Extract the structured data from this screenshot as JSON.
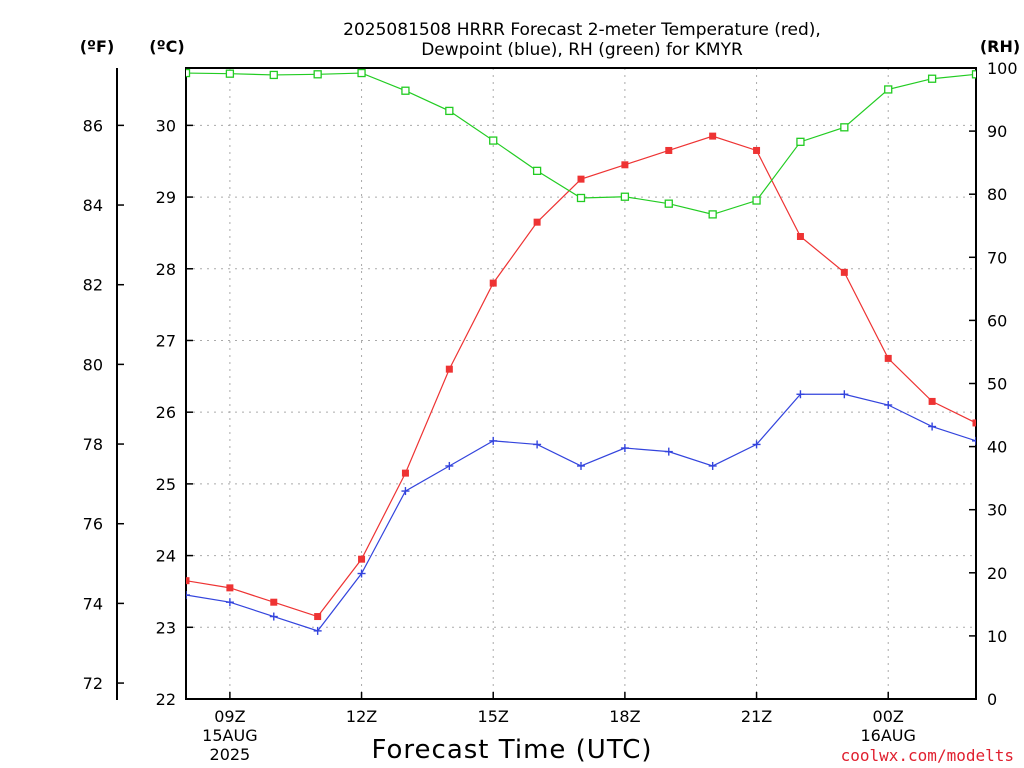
{
  "title_line1": "2025081508 HRRR Forecast 2-meter Temperature (red),",
  "title_line2": "Dewpoint (blue), RH (green) for KMYR",
  "unit_f": "(ºF)",
  "unit_c": "(ºC)",
  "unit_rh": "(RH)",
  "credit": "coolwx.com/modelts",
  "chart_data": {
    "type": "line",
    "title": "2025081508 HRRR Forecast 2-meter Temperature (red), Dewpoint (blue), RH (green) for KMYR",
    "xlabel": "Forecast Time (UTC)",
    "x_hours": [
      8,
      9,
      10,
      11,
      12,
      13,
      14,
      15,
      16,
      17,
      18,
      19,
      20,
      21,
      22,
      23,
      24,
      25,
      26
    ],
    "xlim": [
      8,
      26
    ],
    "x_ticks": [
      {
        "hour": 9,
        "lines": [
          "09Z",
          "15AUG",
          "2025"
        ]
      },
      {
        "hour": 12,
        "lines": [
          "12Z"
        ]
      },
      {
        "hour": 15,
        "lines": [
          "15Z"
        ]
      },
      {
        "hour": 18,
        "lines": [
          "18Z"
        ]
      },
      {
        "hour": 21,
        "lines": [
          "21Z"
        ]
      },
      {
        "hour": 24,
        "lines": [
          "00Z",
          "16AUG"
        ]
      }
    ],
    "y_celsius": {
      "label": "(ºC)",
      "ylim": [
        22,
        31
      ],
      "ticks": [
        22,
        23,
        24,
        25,
        26,
        27,
        28,
        29,
        30
      ]
    },
    "y_fahrenheit": {
      "label": "(ºF)",
      "ticks": [
        72,
        74,
        76,
        78,
        80,
        82,
        84,
        86
      ]
    },
    "y_rh": {
      "label": "(RH)",
      "ylim": [
        0,
        100
      ],
      "ticks": [
        0,
        10,
        20,
        30,
        40,
        50,
        60,
        70,
        80,
        90,
        100
      ]
    },
    "series": [
      {
        "name": "Temperature",
        "axis": "celsius",
        "color": "#ee3333",
        "marker": "filled-square",
        "values": [
          23.65,
          23.55,
          23.35,
          23.15,
          23.95,
          25.15,
          26.6,
          27.8,
          28.65,
          29.25,
          29.45,
          29.65,
          29.85,
          29.65,
          28.45,
          27.95,
          26.75,
          26.15,
          25.85
        ]
      },
      {
        "name": "Dewpoint",
        "axis": "celsius",
        "color": "#3344dd",
        "marker": "plus",
        "values": [
          23.45,
          23.35,
          23.15,
          22.95,
          23.75,
          24.9,
          25.25,
          25.6,
          25.55,
          25.25,
          25.5,
          25.45,
          25.25,
          25.55,
          26.25,
          26.25,
          26.1,
          25.8,
          25.6
        ]
      },
      {
        "name": "RH",
        "axis": "rh",
        "color": "#22cc22",
        "marker": "open-square",
        "values": [
          99.2,
          99.1,
          98.9,
          99.0,
          99.2,
          96.4,
          93.2,
          88.5,
          83.7,
          79.4,
          79.6,
          78.5,
          76.8,
          79.0,
          88.3,
          90.6,
          96.6,
          98.3,
          99.0
        ]
      }
    ],
    "grid": true
  }
}
